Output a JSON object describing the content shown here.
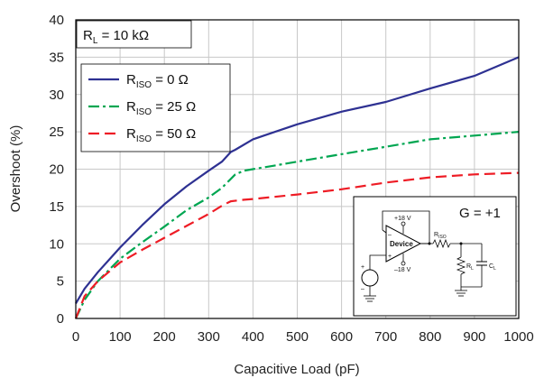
{
  "chart_data": {
    "type": "line",
    "title": "",
    "xlabel": "Capacitive Load (pF)",
    "ylabel": "Overshoot (%)",
    "xlim": [
      0,
      1000
    ],
    "ylim": [
      0,
      40
    ],
    "xticks": [
      0,
      100,
      200,
      300,
      400,
      500,
      600,
      700,
      800,
      900,
      1000
    ],
    "yticks": [
      0,
      5,
      10,
      15,
      20,
      25,
      30,
      35,
      40
    ],
    "grid": true,
    "legend_position": "top-left",
    "load_annotation": "10 kΩ",
    "gain_annotation": "G = +1",
    "series": [
      {
        "legend_prefix": "R",
        "legend_sub": "ISO",
        "legend_suffix": " = 0 Ω",
        "color": "#2e3192",
        "dash": "solid",
        "x": [
          0,
          20,
          50,
          100,
          150,
          200,
          250,
          300,
          330,
          350,
          360,
          400,
          450,
          500,
          600,
          700,
          800,
          900,
          1000
        ],
        "y": [
          2,
          4,
          6.2,
          9.5,
          12.5,
          15.3,
          17.7,
          19.8,
          21,
          22.3,
          22.6,
          24,
          25,
          26,
          27.7,
          29,
          30.8,
          32.5,
          35
        ]
      },
      {
        "legend_prefix": "R",
        "legend_sub": "ISO",
        "legend_suffix": " = 25 Ω",
        "color": "#00a651",
        "dash": "dashdot",
        "x": [
          0,
          20,
          50,
          100,
          150,
          200,
          250,
          300,
          330,
          360,
          380,
          400,
          450,
          500,
          600,
          700,
          800,
          900,
          1000
        ],
        "y": [
          0,
          2.5,
          5,
          8,
          10.2,
          12.3,
          14.5,
          16.2,
          17.5,
          19.3,
          19.8,
          20,
          20.5,
          21,
          22,
          23,
          24,
          24.5,
          25
        ]
      },
      {
        "legend_prefix": "R",
        "legend_sub": "ISO",
        "legend_suffix": " = 50 Ω",
        "color": "#ee1c25",
        "dash": "dashed",
        "x": [
          0,
          20,
          50,
          100,
          150,
          200,
          250,
          300,
          330,
          350,
          380,
          400,
          500,
          600,
          700,
          800,
          900,
          1000
        ],
        "y": [
          0,
          3,
          5,
          7.5,
          9.2,
          10.8,
          12.4,
          14,
          15.1,
          15.7,
          15.9,
          16,
          16.6,
          17.3,
          18.2,
          18.9,
          19.3,
          19.5
        ]
      }
    ]
  },
  "schematic": {
    "vpos": "+18 V",
    "vneg": "–18 V",
    "device": "Device",
    "minus": "–",
    "plus": "+",
    "riso_r": "R",
    "riso_sub": "ISO",
    "rl_r": "R",
    "rl_sub": "L",
    "cl_c": "C",
    "cl_sub": "L",
    "src_plus": "+",
    "src_minus": "–"
  }
}
